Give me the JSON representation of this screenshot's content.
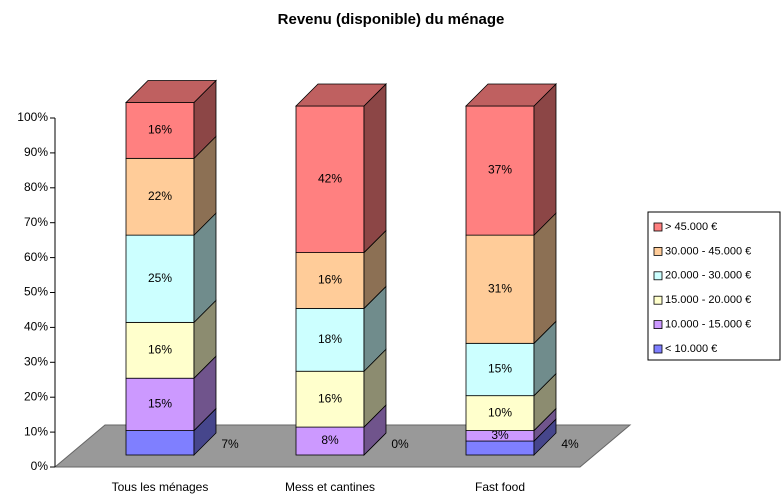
{
  "chart_data": {
    "type": "stacked_bar_3d",
    "title": "Revenu (disponible) du ménage",
    "categories": [
      "Tous les ménages",
      "Mess et cantines",
      "Fast food"
    ],
    "series": [
      {
        "name": "< 10.000 €",
        "color": "#7f7fff",
        "values": [
          7,
          0,
          4
        ],
        "value_labels": [
          "7%",
          "0%",
          "4%"
        ]
      },
      {
        "name": "10.000 - 15.000 €",
        "color": "#cc99ff",
        "values": [
          15,
          8,
          3
        ],
        "value_labels": [
          "15%",
          "8%",
          "3%"
        ]
      },
      {
        "name": "15.000 - 20.000 €",
        "color": "#ffffcc",
        "values": [
          16,
          16,
          10
        ],
        "value_labels": [
          "16%",
          "16%",
          "10%"
        ]
      },
      {
        "name": "20.000 - 30.000 €",
        "color": "#ccffff",
        "values": [
          25,
          18,
          15
        ],
        "value_labels": [
          "25%",
          "18%",
          "15%"
        ]
      },
      {
        "name": "30.000 - 45.000 €",
        "color": "#ffcc99",
        "values": [
          22,
          16,
          31
        ],
        "value_labels": [
          "22%",
          "16%",
          "31%"
        ]
      },
      {
        "name": "> 45.000 €",
        "color": "#ff8080",
        "values": [
          16,
          42,
          37
        ],
        "value_labels": [
          "16%",
          "42%",
          "37%"
        ]
      }
    ],
    "ylim": [
      0,
      100
    ],
    "yticks": [
      {
        "value": 0,
        "label": "0%"
      },
      {
        "value": 10,
        "label": "10%"
      },
      {
        "value": 20,
        "label": "20%"
      },
      {
        "value": 30,
        "label": "30%"
      },
      {
        "value": 40,
        "label": "40%"
      },
      {
        "value": 50,
        "label": "50%"
      },
      {
        "value": 60,
        "label": "60%"
      },
      {
        "value": 70,
        "label": "70%"
      },
      {
        "value": 80,
        "label": "80%"
      },
      {
        "value": 90,
        "label": "90%"
      },
      {
        "value": 100,
        "label": "100%"
      }
    ],
    "legend": "right"
  }
}
